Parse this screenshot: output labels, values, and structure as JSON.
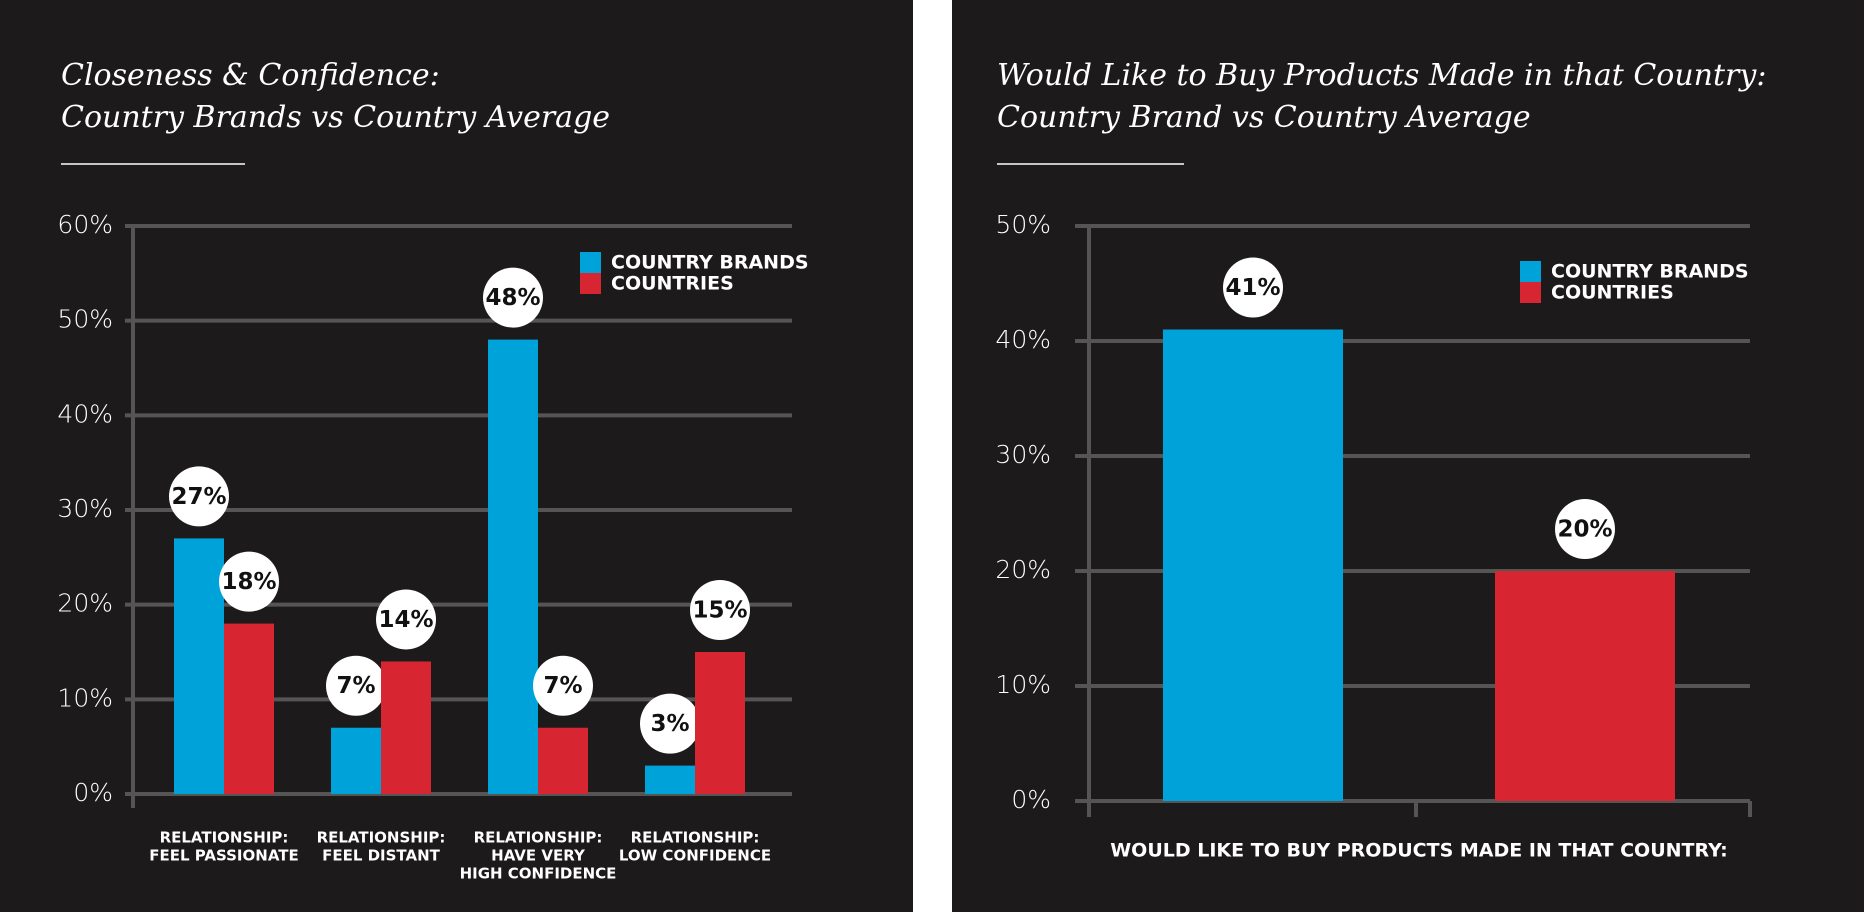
{
  "chart_data": [
    {
      "type": "bar",
      "title": [
        "Closeness & Confidence:",
        "Country Brands vs Country Average"
      ],
      "categories": [
        [
          "RELATIONSHIP:",
          "FEEL PASSIONATE"
        ],
        [
          "RELATIONSHIP:",
          "FEEL DISTANT"
        ],
        [
          "RELATIONSHIP:",
          "HAVE VERY",
          "HIGH CONFIDENCE"
        ],
        [
          "RELATIONSHIP:",
          "LOW CONFIDENCE"
        ]
      ],
      "series": [
        {
          "name": "COUNTRY BRANDS",
          "color": "#00a3d9",
          "values": [
            27,
            7,
            48,
            3
          ],
          "value_labels": [
            "27%",
            "7%",
            "48%",
            "3%"
          ]
        },
        {
          "name": "COUNTRIES",
          "color": "#d82532",
          "values": [
            18,
            14,
            7,
            15
          ],
          "value_labels": [
            "18%",
            "14%",
            "7%",
            "15%"
          ]
        }
      ],
      "ylim": [
        0,
        60
      ],
      "yticks": [
        {
          "value": 0,
          "label": "0%"
        },
        {
          "value": 10,
          "label": "10%"
        },
        {
          "value": 20,
          "label": "20%"
        },
        {
          "value": 30,
          "label": "30%"
        },
        {
          "value": 40,
          "label": "40%"
        },
        {
          "value": 50,
          "label": "50%"
        },
        {
          "value": 60,
          "label": "60%"
        }
      ],
      "grid": true,
      "legend": "top-right"
    },
    {
      "type": "bar",
      "title": [
        "Would Like to Buy Products Made in that Country:",
        "Country Brand vs Country Average"
      ],
      "categories": [
        [
          "WOULD LIKE TO BUY PRODUCTS MADE IN THAT COUNTRY:"
        ]
      ],
      "series": [
        {
          "name": "COUNTRY BRANDS",
          "color": "#00a3d9",
          "values": [
            41
          ],
          "value_labels": [
            "41%"
          ]
        },
        {
          "name": "COUNTRIES",
          "color": "#d82532",
          "values": [
            20
          ],
          "value_labels": [
            "20%"
          ]
        }
      ],
      "ylim": [
        0,
        50
      ],
      "yticks": [
        {
          "value": 0,
          "label": "0%"
        },
        {
          "value": 10,
          "label": "10%"
        },
        {
          "value": 20,
          "label": "20%"
        },
        {
          "value": 30,
          "label": "30%"
        },
        {
          "value": 40,
          "label": "40%"
        },
        {
          "value": 50,
          "label": "50%"
        }
      ],
      "grid": true,
      "legend": "top-right"
    }
  ]
}
